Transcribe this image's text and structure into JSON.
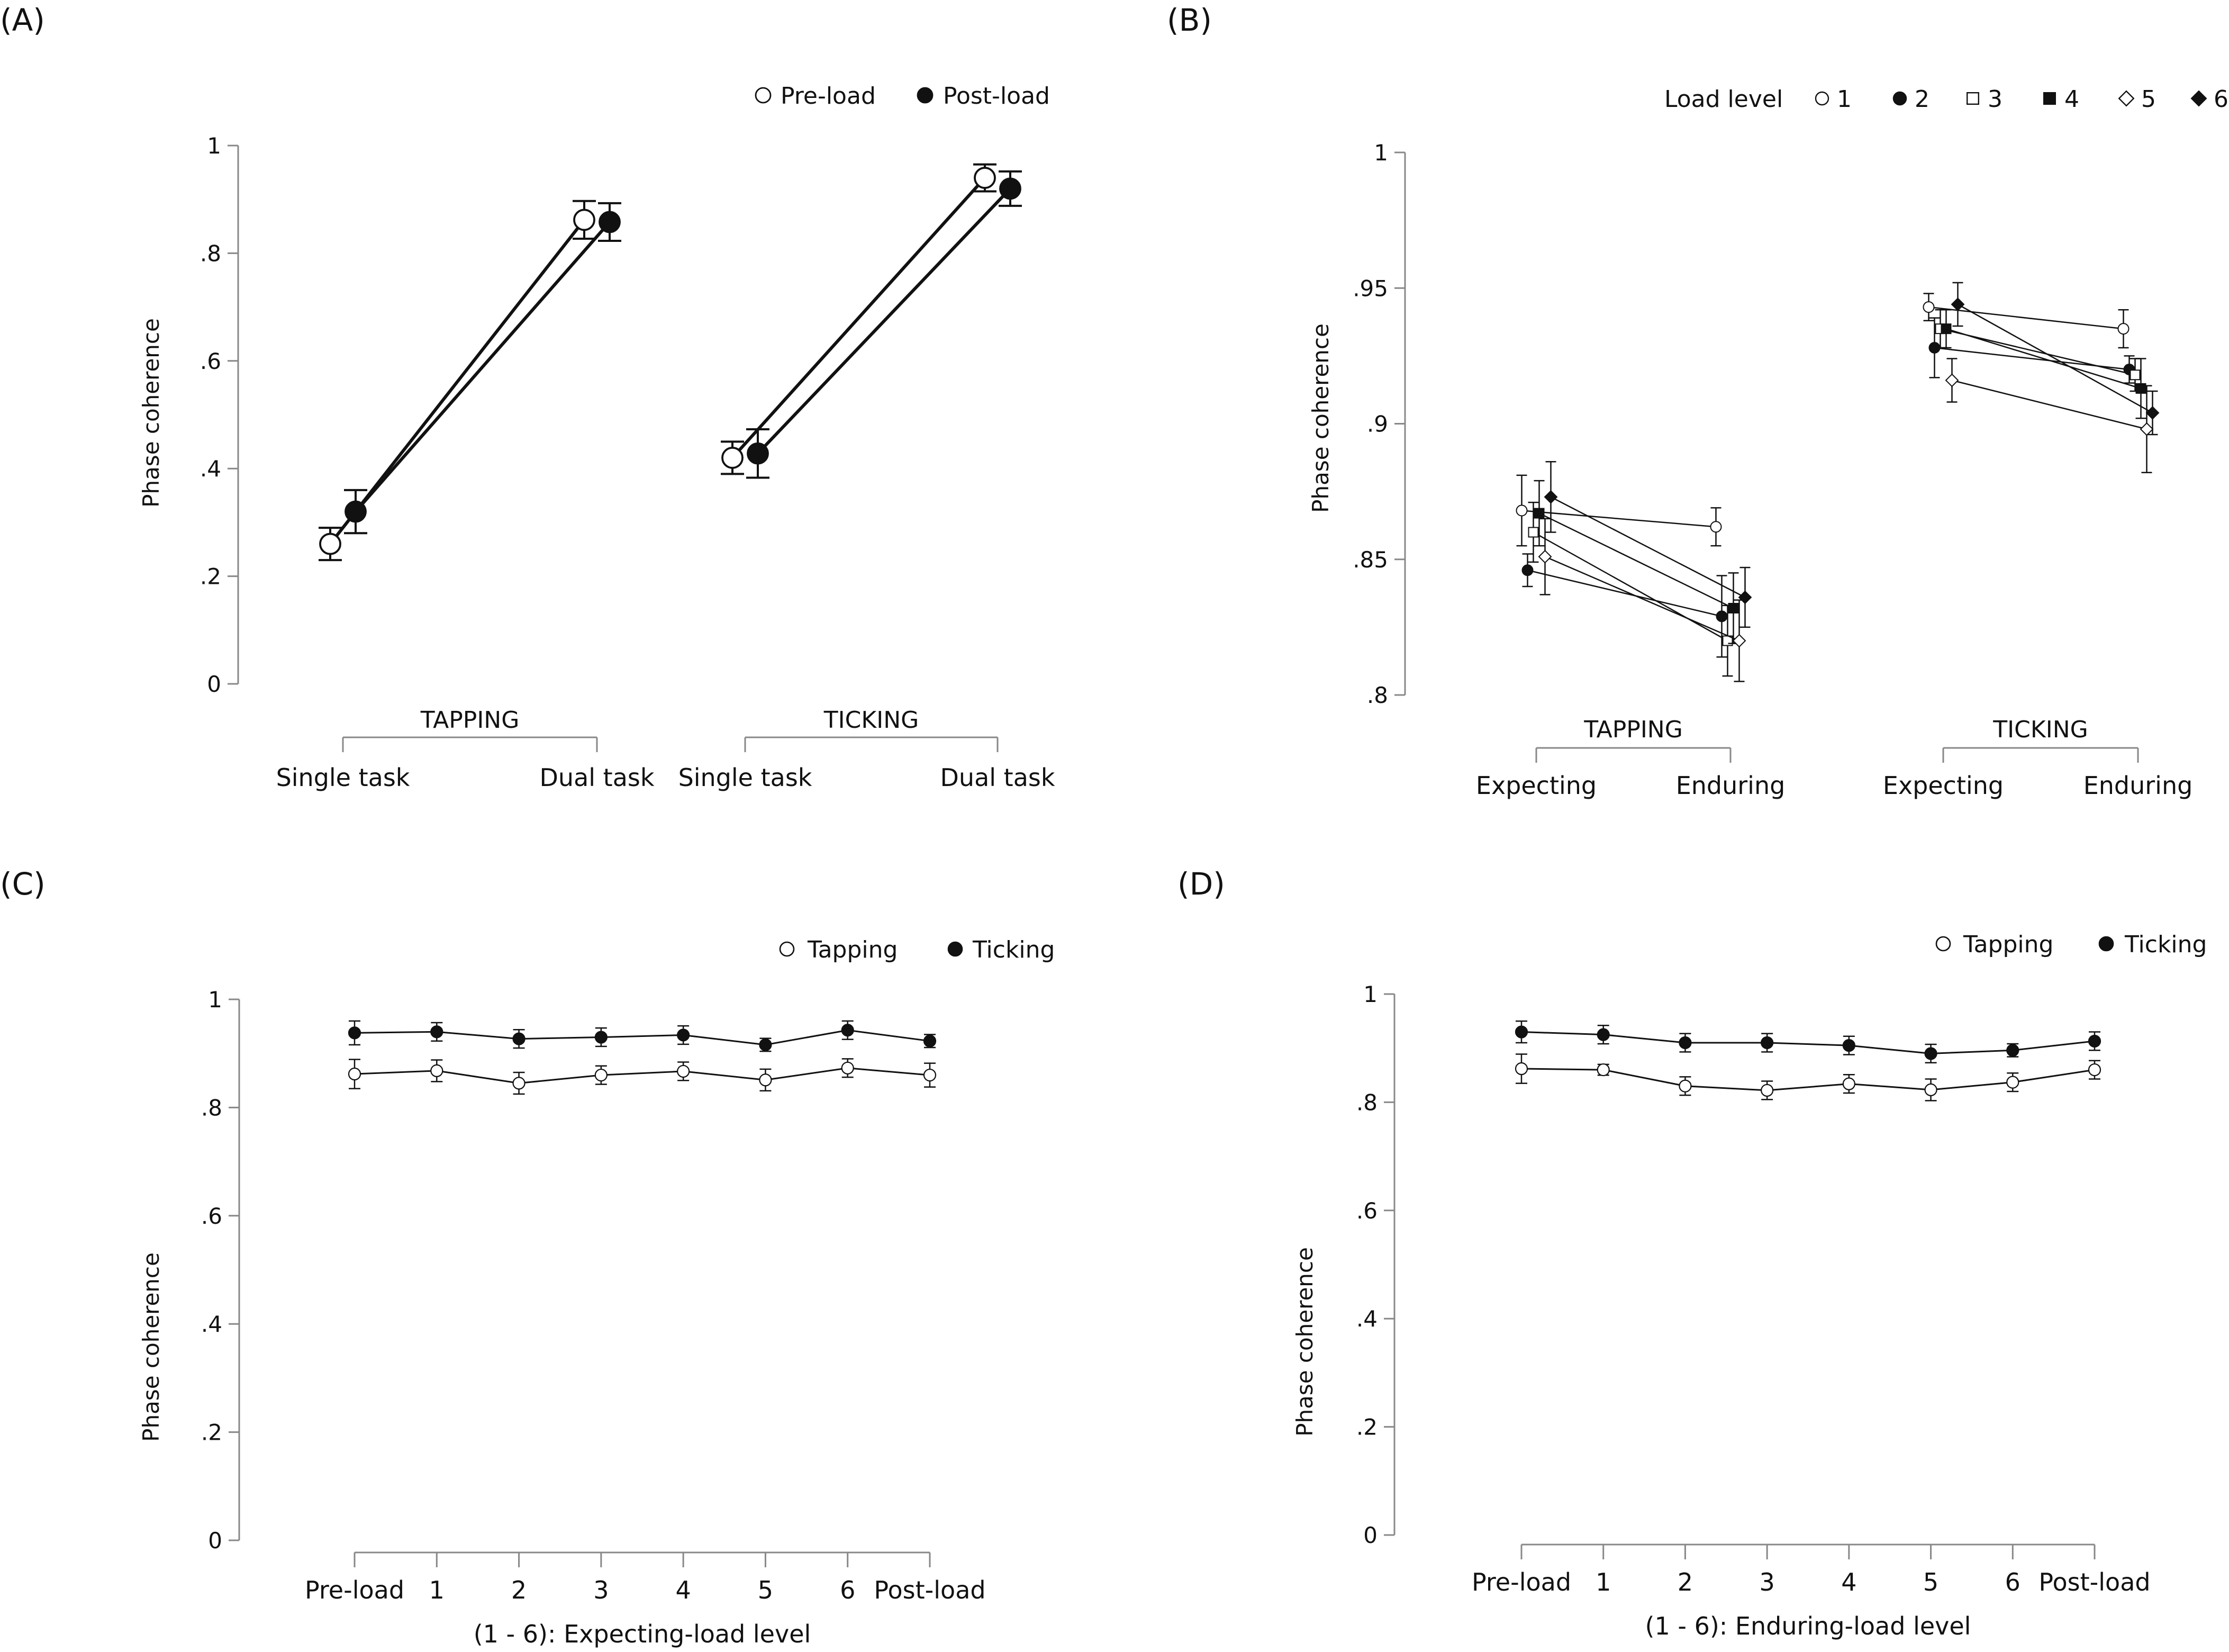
{
  "chart_data": [
    {
      "id": "A",
      "type": "line",
      "panel_label": "(A)",
      "ylabel": "Phase coherence",
      "ylim": [
        0,
        1
      ],
      "yticks": [
        0,
        0.2,
        0.4,
        0.6,
        0.8,
        1
      ],
      "ytick_labels": [
        "0",
        ".2",
        ".4",
        ".6",
        ".8",
        "1"
      ],
      "groups": [
        {
          "label": "TAPPING",
          "categories": [
            "Single task",
            "Dual task"
          ]
        },
        {
          "label": "TICKING",
          "categories": [
            "Single task",
            "Dual task"
          ]
        }
      ],
      "legend": [
        {
          "label": "Pre-load",
          "marker": "open-circle"
        },
        {
          "label": "Post-load",
          "marker": "filled-circle"
        }
      ],
      "series": [
        {
          "name": "Pre-load",
          "marker": "open-circle",
          "values": [
            [
              0.26,
              0.862
            ],
            [
              0.42,
              0.94
            ]
          ],
          "errors": [
            [
              0.03,
              0.035
            ],
            [
              0.03,
              0.025
            ]
          ]
        },
        {
          "name": "Post-load",
          "marker": "filled-circle",
          "values": [
            [
              0.32,
              0.858
            ],
            [
              0.428,
              0.92
            ]
          ],
          "errors": [
            [
              0.04,
              0.035
            ],
            [
              0.045,
              0.032
            ]
          ]
        }
      ]
    },
    {
      "id": "B",
      "type": "line",
      "panel_label": "(B)",
      "ylabel": "Phase coherence",
      "ylim": [
        0.8,
        1
      ],
      "yticks": [
        0.8,
        0.85,
        0.9,
        0.95,
        1
      ],
      "ytick_labels": [
        ".8",
        ".85",
        ".9",
        ".95",
        "1"
      ],
      "groups": [
        {
          "label": "TAPPING",
          "categories": [
            "Expecting",
            "Enduring"
          ]
        },
        {
          "label": "TICKING",
          "categories": [
            "Expecting",
            "Enduring"
          ]
        }
      ],
      "legend_title": "Load level",
      "legend": [
        {
          "label": "1",
          "marker": "open-circle"
        },
        {
          "label": "2",
          "marker": "filled-circle"
        },
        {
          "label": "3",
          "marker": "open-square"
        },
        {
          "label": "4",
          "marker": "filled-square"
        },
        {
          "label": "5",
          "marker": "open-diamond"
        },
        {
          "label": "6",
          "marker": "filled-diamond"
        }
      ],
      "series": [
        {
          "name": "1",
          "marker": "open-circle",
          "values": [
            [
              0.868,
              0.862
            ],
            [
              0.943,
              0.935
            ]
          ],
          "errors": [
            [
              0.013,
              0.007
            ],
            [
              0.005,
              0.007
            ]
          ]
        },
        {
          "name": "2",
          "marker": "filled-circle",
          "values": [
            [
              0.846,
              0.829
            ],
            [
              0.928,
              0.92
            ]
          ],
          "errors": [
            [
              0.006,
              0.015
            ],
            [
              0.011,
              0.005
            ]
          ]
        },
        {
          "name": "3",
          "marker": "open-square",
          "values": [
            [
              0.86,
              0.82
            ],
            [
              0.935,
              0.918
            ]
          ],
          "errors": [
            [
              0.011,
              0.013
            ],
            [
              0.007,
              0.006
            ]
          ]
        },
        {
          "name": "4",
          "marker": "filled-square",
          "values": [
            [
              0.867,
              0.832
            ],
            [
              0.935,
              0.913
            ]
          ],
          "errors": [
            [
              0.012,
              0.013
            ],
            [
              0.007,
              0.011
            ]
          ]
        },
        {
          "name": "5",
          "marker": "open-diamond",
          "values": [
            [
              0.851,
              0.82
            ],
            [
              0.916,
              0.898
            ]
          ],
          "errors": [
            [
              0.014,
              0.015
            ],
            [
              0.008,
              0.016
            ]
          ]
        },
        {
          "name": "6",
          "marker": "filled-diamond",
          "values": [
            [
              0.873,
              0.836
            ],
            [
              0.944,
              0.904
            ]
          ],
          "errors": [
            [
              0.013,
              0.011
            ],
            [
              0.008,
              0.008
            ]
          ]
        }
      ]
    },
    {
      "id": "C",
      "type": "line",
      "panel_label": "(C)",
      "ylabel": "Phase coherence",
      "xlabel": "(1 - 6): Expecting-load level",
      "ylim": [
        0,
        1
      ],
      "yticks": [
        0,
        0.2,
        0.4,
        0.6,
        0.8,
        1
      ],
      "ytick_labels": [
        "0",
        ".2",
        ".4",
        ".6",
        ".8",
        "1"
      ],
      "categories": [
        "Pre-load",
        "1",
        "2",
        "3",
        "4",
        "5",
        "6",
        "Post-load"
      ],
      "legend": [
        {
          "label": "Tapping",
          "marker": "open-circle"
        },
        {
          "label": "Ticking",
          "marker": "filled-circle"
        }
      ],
      "series": [
        {
          "name": "Tapping",
          "marker": "open-circle",
          "values": [
            0.862,
            0.868,
            0.845,
            0.86,
            0.867,
            0.851,
            0.873,
            0.86
          ],
          "errors": [
            0.027,
            0.02,
            0.02,
            0.017,
            0.017,
            0.02,
            0.017,
            0.022
          ]
        },
        {
          "name": "Ticking",
          "marker": "filled-circle",
          "values": [
            0.938,
            0.94,
            0.927,
            0.93,
            0.934,
            0.916,
            0.943,
            0.923
          ],
          "errors": [
            0.022,
            0.017,
            0.017,
            0.017,
            0.017,
            0.012,
            0.017,
            0.012
          ]
        }
      ]
    },
    {
      "id": "D",
      "type": "line",
      "panel_label": "(D)",
      "ylabel": "Phase coherence",
      "xlabel": "(1 - 6): Enduring-load level",
      "ylim": [
        0,
        1
      ],
      "yticks": [
        0,
        0.2,
        0.4,
        0.6,
        0.8,
        1
      ],
      "ytick_labels": [
        "0",
        ".2",
        ".4",
        ".6",
        ".8",
        "1"
      ],
      "categories": [
        "Pre-load",
        "1",
        "2",
        "3",
        "4",
        "5",
        "6",
        "Post-load"
      ],
      "legend": [
        {
          "label": "Tapping",
          "marker": "open-circle"
        },
        {
          "label": "Ticking",
          "marker": "filled-circle"
        }
      ],
      "series": [
        {
          "name": "Tapping",
          "marker": "open-circle",
          "values": [
            0.862,
            0.86,
            0.83,
            0.822,
            0.834,
            0.823,
            0.837,
            0.86
          ],
          "errors": [
            0.027,
            0.01,
            0.017,
            0.017,
            0.017,
            0.02,
            0.017,
            0.017
          ]
        },
        {
          "name": "Ticking",
          "marker": "filled-circle",
          "values": [
            0.93,
            0.925,
            0.91,
            0.91,
            0.905,
            0.89,
            0.896,
            0.913
          ],
          "errors": [
            0.02,
            0.017,
            0.017,
            0.017,
            0.017,
            0.017,
            0.012,
            0.017
          ]
        }
      ]
    }
  ]
}
